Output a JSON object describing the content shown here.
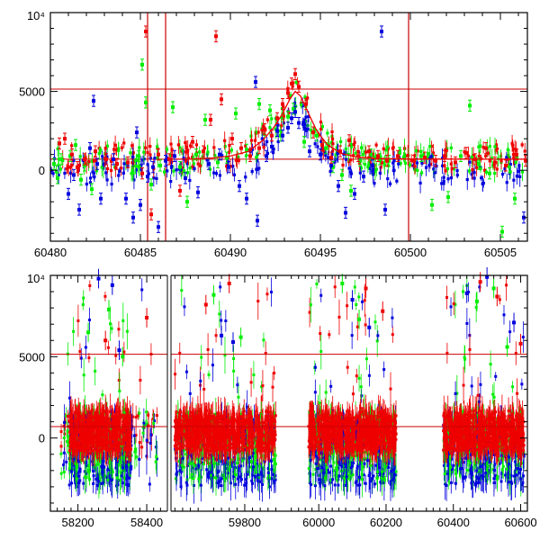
{
  "colors": {
    "frame": "#000000",
    "ref_line": "#cc0000",
    "g": "#00ee00",
    "b": "#0000dd",
    "r": "#ee0000"
  },
  "chart_data": [
    {
      "type": "scatter",
      "panel": "top",
      "title": "",
      "xlabel": "",
      "ylabel": "",
      "xlim": [
        60480,
        60506.5
      ],
      "ylim": [
        -4500,
        10000
      ],
      "x_ticks": [
        "60480",
        "60485",
        "60490",
        "60495",
        "60500",
        "60505"
      ],
      "x_tick_values": [
        60480,
        60485,
        60490,
        60495,
        60500,
        60505
      ],
      "y_tick_labels": [
        "0",
        "5000",
        "10⁴"
      ],
      "y_tick_values": [
        0,
        5000,
        10000
      ],
      "hlines": [
        700,
        5150
      ],
      "vlines": [
        60485.4,
        60486.4,
        60499.9
      ],
      "has_error_bars": true,
      "model_curve": {
        "color": "#ee0000",
        "points": [
          [
            60487.0,
            700
          ],
          [
            60488.0,
            720
          ],
          [
            60489.0,
            780
          ],
          [
            60490.0,
            900
          ],
          [
            60491.0,
            1200
          ],
          [
            60491.8,
            1900
          ],
          [
            60492.4,
            2700
          ],
          [
            60492.9,
            3600
          ],
          [
            60493.3,
            4500
          ],
          [
            60493.6,
            5000
          ],
          [
            60493.9,
            4700
          ],
          [
            60494.3,
            3700
          ],
          [
            60494.8,
            2500
          ],
          [
            60495.4,
            1600
          ],
          [
            60496.2,
            1050
          ],
          [
            60497.0,
            850
          ],
          [
            60498.0,
            750
          ],
          [
            60500.0,
            710
          ],
          [
            60506.5,
            700
          ]
        ]
      },
      "series": [
        {
          "name": "",
          "color": "#00ee00",
          "points": [
            [
              60480.2,
              400
            ],
            [
              60480.4,
              -500
            ],
            [
              60480.6,
              700
            ],
            [
              60481.1,
              900
            ],
            [
              60481.4,
              1600
            ],
            [
              60481.7,
              -600
            ],
            [
              60481.9,
              300
            ],
            [
              60482.3,
              -1200
            ],
            [
              60484.9,
              900
            ],
            [
              60485.1,
              6700
            ],
            [
              60485.3,
              4300
            ],
            [
              60485.6,
              -900
            ],
            [
              60486.1,
              300
            ],
            [
              60486.8,
              4000
            ],
            [
              60487.2,
              200
            ],
            [
              60487.6,
              -2000
            ],
            [
              60488.1,
              1000
            ],
            [
              60488.6,
              3200
            ],
            [
              60489.3,
              500
            ],
            [
              60489.8,
              800
            ],
            [
              60490.3,
              3600
            ],
            [
              60490.9,
              1300
            ],
            [
              60491.6,
              4200
            ],
            [
              60492.2,
              3800
            ],
            [
              60492.8,
              2200
            ],
            [
              60493.2,
              3400
            ],
            [
              60493.5,
              3900
            ],
            [
              60494.1,
              1800
            ],
            [
              60494.8,
              2200
            ],
            [
              60495.3,
              1400
            ],
            [
              60495.7,
              200
            ],
            [
              60496.2,
              -300
            ],
            [
              60496.7,
              -1300
            ],
            [
              60497.2,
              600
            ],
            [
              60497.8,
              1000
            ],
            [
              60498.3,
              700
            ],
            [
              60498.8,
              600
            ],
            [
              60499.4,
              1100
            ],
            [
              60500.6,
              900
            ],
            [
              60501.2,
              -2200
            ],
            [
              60502.1,
              -1700
            ],
            [
              60502.8,
              900
            ],
            [
              60503.3,
              4100
            ],
            [
              60503.8,
              400
            ],
            [
              60504.4,
              -200
            ],
            [
              60505.1,
              -3900
            ],
            [
              60505.8,
              -1800
            ]
          ]
        },
        {
          "name": "",
          "color": "#0000dd",
          "points": [
            [
              60481.0,
              -1500
            ],
            [
              60481.3,
              -300
            ],
            [
              60481.6,
              -2500
            ],
            [
              60482.2,
              1400
            ],
            [
              60482.4,
              4400
            ],
            [
              60482.6,
              400
            ],
            [
              60482.8,
              -1800
            ],
            [
              60483.5,
              700
            ],
            [
              60484.2,
              -1800
            ],
            [
              60484.6,
              -3000
            ],
            [
              60484.8,
              2400
            ],
            [
              60485.0,
              -2200
            ],
            [
              60485.4,
              -400
            ],
            [
              60485.7,
              200
            ],
            [
              60486.0,
              -3600
            ],
            [
              60486.4,
              600
            ],
            [
              60486.9,
              900
            ],
            [
              60487.5,
              -500
            ],
            [
              60488.2,
              -1400
            ],
            [
              60488.8,
              400
            ],
            [
              60489.4,
              1000
            ],
            [
              60489.9,
              200
            ],
            [
              60490.5,
              -1000
            ],
            [
              60490.9,
              -1800
            ],
            [
              60491.4,
              5600
            ],
            [
              60491.5,
              -3200
            ],
            [
              60492.0,
              900
            ],
            [
              60492.3,
              1500
            ],
            [
              60492.6,
              2500
            ],
            [
              60492.9,
              2200
            ],
            [
              60493.2,
              2700
            ],
            [
              60493.4,
              3300
            ],
            [
              60493.6,
              3700
            ],
            [
              60493.8,
              3000
            ],
            [
              60494.1,
              2900
            ],
            [
              60494.4,
              1200
            ],
            [
              60495.0,
              1000
            ],
            [
              60495.6,
              300
            ],
            [
              60496.0,
              -1000
            ],
            [
              60496.4,
              -2700
            ],
            [
              60496.9,
              -1500
            ],
            [
              60497.4,
              -400
            ],
            [
              60497.9,
              300
            ],
            [
              60498.4,
              8800
            ],
            [
              60498.6,
              -2500
            ],
            [
              60506.3,
              -3000
            ]
          ]
        },
        {
          "name": "",
          "color": "#ee0000",
          "points": [
            [
              60480.5,
              1700
            ],
            [
              60480.8,
              2000
            ],
            [
              60481.2,
              1000
            ],
            [
              60481.5,
              200
            ],
            [
              60481.9,
              700
            ],
            [
              60482.5,
              1200
            ],
            [
              60483.1,
              700
            ],
            [
              60483.7,
              400
            ],
            [
              60484.3,
              500
            ],
            [
              60485.1,
              -200
            ],
            [
              60485.3,
              8800
            ],
            [
              60485.6,
              -2800
            ],
            [
              60486.0,
              1000
            ],
            [
              60486.6,
              700
            ],
            [
              60487.2,
              -1300
            ],
            [
              60487.9,
              1800
            ],
            [
              60488.5,
              1200
            ],
            [
              60488.9,
              3200
            ],
            [
              60489.2,
              8500
            ],
            [
              60489.5,
              4500
            ],
            [
              60490.1,
              2000
            ],
            [
              60490.6,
              1400
            ],
            [
              60491.1,
              900
            ],
            [
              60491.6,
              1400
            ],
            [
              60491.9,
              2600
            ],
            [
              60492.3,
              2200
            ],
            [
              60492.6,
              3300
            ],
            [
              60492.9,
              4200
            ],
            [
              60493.2,
              4900
            ],
            [
              60493.4,
              5500
            ],
            [
              60493.6,
              6100
            ],
            [
              60493.8,
              5300
            ],
            [
              60494.2,
              4200
            ],
            [
              60494.6,
              2400
            ],
            [
              60495.1,
              1600
            ],
            [
              60495.6,
              800
            ],
            [
              60496.1,
              1200
            ],
            [
              60496.6,
              1900
            ],
            [
              60497.1,
              900
            ],
            [
              60497.7,
              1200
            ],
            [
              60498.2,
              900
            ],
            [
              60498.7,
              600
            ],
            [
              60499.3,
              900
            ],
            [
              60500.2,
              600
            ],
            [
              60500.8,
              800
            ],
            [
              60501.4,
              600
            ],
            [
              60501.9,
              900
            ],
            [
              60502.5,
              500
            ],
            [
              60503.1,
              1100
            ],
            [
              60503.6,
              700
            ],
            [
              60504.2,
              1400
            ],
            [
              60504.7,
              500
            ],
            [
              60505.3,
              300
            ],
            [
              60505.9,
              1000
            ],
            [
              60506.4,
              600
            ]
          ]
        }
      ]
    },
    {
      "type": "scatter",
      "panel": "bottom",
      "title": "",
      "xlabel": "",
      "ylabel": "",
      "y_tick_labels": [
        "0",
        "5000",
        "10⁴"
      ],
      "y_tick_values": [
        0,
        5000,
        10000
      ],
      "ylim": [
        -4500,
        10000
      ],
      "hlines": [
        700,
        5150
      ],
      "has_error_bars": true,
      "segments": [
        {
          "xlim": [
            58120,
            58460
          ],
          "x_ticks": [
            "58200",
            "58400"
          ],
          "x_tick_values": [
            58200,
            58400
          ],
          "clusters": [
            [
              58175,
              58355,
              1.0
            ],
            [
              58150,
              58430,
              0.25
            ]
          ]
        },
        {
          "xlim": [
            59610,
            59930
          ],
          "x_ticks": [
            "59800"
          ],
          "x_tick_values": [
            59800
          ],
          "clusters": [
            [
              59620,
              59880,
              1.0
            ]
          ]
        },
        {
          "xlim": [
            59930,
            60620
          ],
          "x_ticks": [
            "60000",
            "60200",
            "60400",
            "60600"
          ],
          "x_tick_values": [
            60000,
            60200,
            60400,
            60600
          ],
          "clusters": [
            [
              59970,
              60230,
              1.0
            ],
            [
              60370,
              60610,
              1.0
            ]
          ]
        }
      ],
      "series_colors": [
        "#00ee00",
        "#0000dd",
        "#ee0000"
      ],
      "series": [
        {
          "name": "",
          "color": "#00ee00",
          "points": [
            [
              58230,
              6500
            ],
            [
              58290,
              7900
            ],
            [
              58330,
              5000
            ],
            [
              59720,
              8800
            ],
            [
              59790,
              6200
            ],
            [
              60070,
              9500
            ],
            [
              60120,
              7300
            ],
            [
              60470,
              8400
            ],
            [
              60520,
              9200
            ],
            [
              60560,
              5600
            ]
          ]
        },
        {
          "name": "",
          "color": "#0000dd",
          "points": [
            [
              58260,
              9800
            ],
            [
              58300,
              9400
            ],
            [
              58320,
              5400
            ],
            [
              59740,
              6300
            ],
            [
              59770,
              5900
            ],
            [
              60100,
              8500
            ],
            [
              60150,
              6800
            ],
            [
              60440,
              8900
            ],
            [
              60500,
              9900
            ],
            [
              60580,
              7100
            ]
          ]
        },
        {
          "name": "",
          "color": "#ee0000",
          "points": [
            [
              58400,
              7400
            ],
            [
              58280,
              6000
            ],
            [
              59700,
              8200
            ],
            [
              59760,
              9500
            ],
            [
              60140,
              9200
            ],
            [
              60190,
              7800
            ],
            [
              60480,
              9600
            ],
            [
              60530,
              8700
            ],
            [
              60600,
              5800
            ]
          ]
        }
      ]
    }
  ]
}
